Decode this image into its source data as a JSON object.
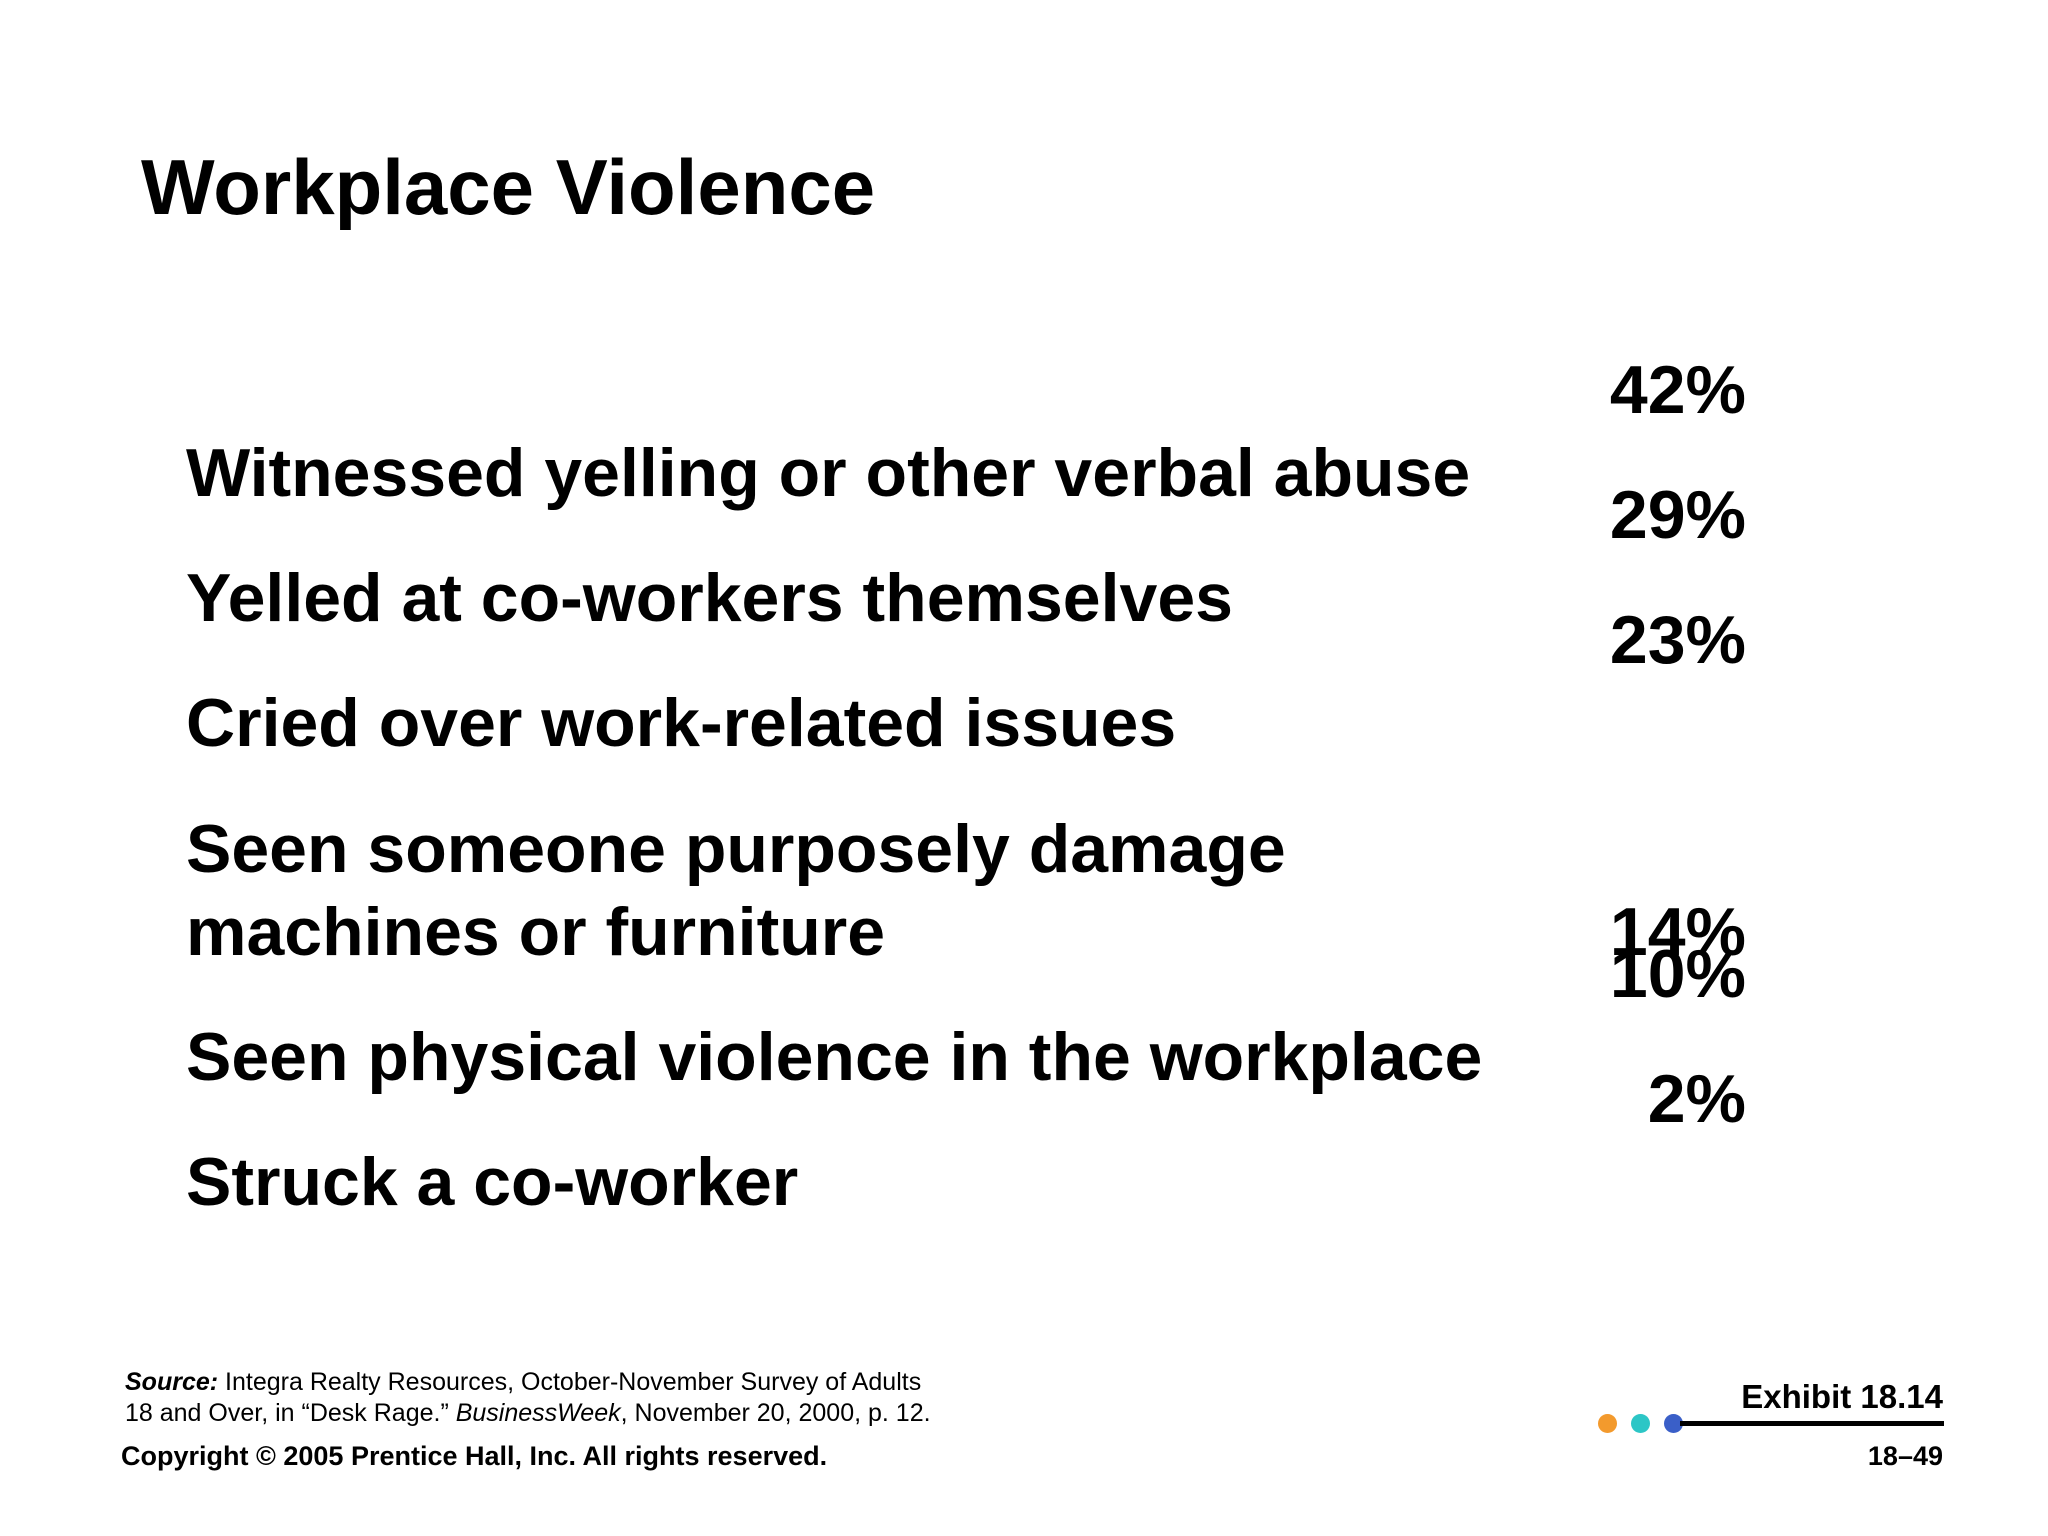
{
  "slide": {
    "title": "Workplace Violence"
  },
  "stats": [
    {
      "label_lines": [
        "Witnessed yelling or other verbal abuse"
      ],
      "value": "42%"
    },
    {
      "label_lines": [
        "Yelled at co-workers themselves"
      ],
      "value": "29%"
    },
    {
      "label_lines": [
        "Cried over work-related issues"
      ],
      "value": "23%"
    },
    {
      "label_lines": [
        "Seen someone purposely damage",
        "machines or furniture"
      ],
      "value": "14%"
    },
    {
      "label_lines": [
        "Seen physical violence in the workplace"
      ],
      "value": "10%"
    },
    {
      "label_lines": [
        "Struck a co-worker"
      ],
      "value": "2%"
    }
  ],
  "footer": {
    "source_label": "Source:",
    "source_line1": "Integra Realty Resources, October-November Survey of Adults",
    "source_line2_pre": "18 and Over, in “Desk Rage.” ",
    "source_publication": "BusinessWeek",
    "source_line2_post": ", November 20, 2000, p. 12.",
    "copyright": "Copyright © 2005 Prentice Hall, Inc. All rights reserved.",
    "exhibit": "Exhibit 18.14",
    "page_number": "18–49"
  },
  "colors": {
    "dot_orange": "#f39a2d",
    "dot_teal": "#2cc6c6",
    "dot_blue": "#3a5fc8",
    "text": "#000000",
    "background": "#ffffff"
  }
}
